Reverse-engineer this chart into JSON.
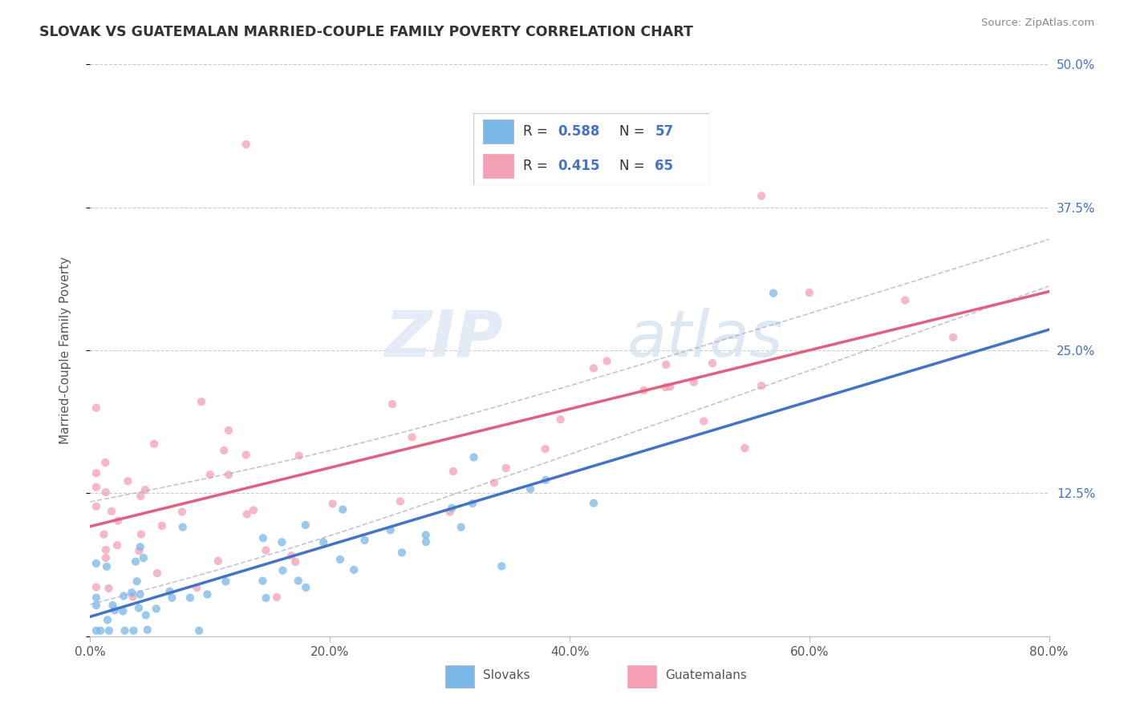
{
  "title": "SLOVAK VS GUATEMALAN MARRIED-COUPLE FAMILY POVERTY CORRELATION CHART",
  "source": "Source: ZipAtlas.com",
  "ylabel": "Married-Couple Family Poverty",
  "xlim": [
    0.0,
    0.8
  ],
  "ylim": [
    0.0,
    0.5
  ],
  "xticks": [
    0.0,
    0.2,
    0.4,
    0.6,
    0.8
  ],
  "xtick_labels": [
    "0.0%",
    "20.0%",
    "40.0%",
    "60.0%",
    "80.0%"
  ],
  "yticks": [
    0.0,
    0.125,
    0.25,
    0.375,
    0.5
  ],
  "ytick_labels": [
    "",
    "12.5%",
    "25.0%",
    "37.5%",
    "50.0%"
  ],
  "slovak_color": "#7ab8e8",
  "guatemalan_color": "#f4a0b5",
  "trend_slovak_color": "#4472c4",
  "trend_guatemalan_color": "#e06080",
  "ci_color": "#aaaacc",
  "background_color": "#ffffff",
  "grid_color": "#cccccc",
  "slovak_R": 0.588,
  "slovak_N": 57,
  "guatemalan_R": 0.415,
  "guatemalan_N": 65,
  "legend_label_slovak": "Slovaks",
  "legend_label_guatemalan": "Guatemalans",
  "sk_trend_x0": 0.0,
  "sk_trend_y0": 0.02,
  "sk_trend_x1": 0.8,
  "sk_trend_y1": 0.22,
  "gt_trend_x0": 0.0,
  "gt_trend_y0": 0.09,
  "gt_trend_x1": 0.8,
  "gt_trend_y1": 0.285
}
